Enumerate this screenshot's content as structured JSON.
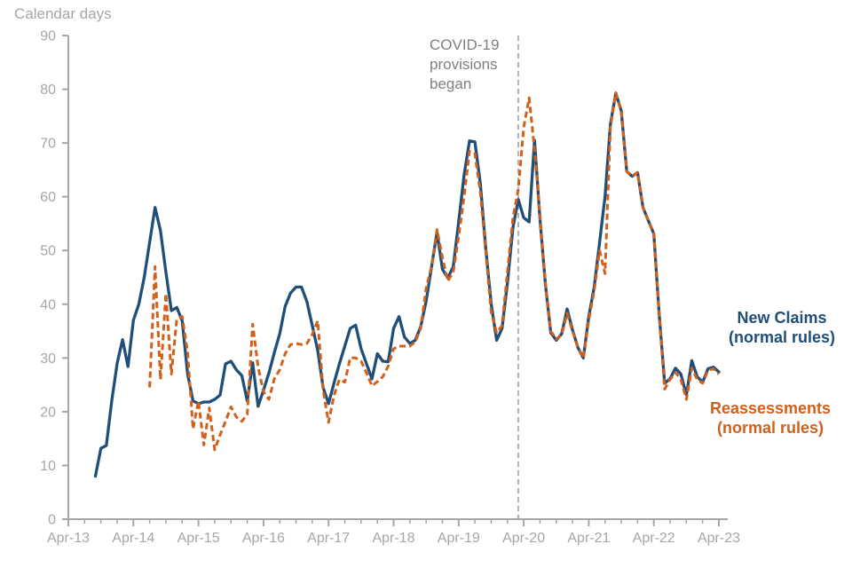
{
  "page": {
    "title": "Calendar days"
  },
  "annotation": {
    "text": "COVID-19\nprovisions\nbegan"
  },
  "legend": {
    "new_claims": {
      "line1": "New Claims",
      "line2": "(normal rules)"
    },
    "reassessments": {
      "line1": "Reassessments",
      "line2": "(normal rules)"
    }
  },
  "colors": {
    "new_claims": "#1f4e79",
    "reassessments": "#d2601a",
    "axis": "#a6a6a6",
    "annotation": "#7f7f7f",
    "covid_line": "#ababab"
  },
  "chart_data": {
    "type": "line",
    "title": "Calendar days",
    "ylabel": "Calendar days",
    "x_unit": "month",
    "x_start": "Apr-2013",
    "x_end": "Apr-2023",
    "months_total": 121,
    "x_tick_labels": [
      "Apr-13",
      "Apr-14",
      "Apr-15",
      "Apr-16",
      "Apr-17",
      "Apr-18",
      "Apr-19",
      "Apr-20",
      "Apr-21",
      "Apr-22",
      "Apr-23"
    ],
    "ylim": [
      0,
      90
    ],
    "y_tick_step": 10,
    "grid": false,
    "legend_position": "right",
    "covid_line": {
      "month_index": 83,
      "month": "Mar-2020",
      "label": "COVID-19 provisions began"
    },
    "series": [
      {
        "name": "New Claims (normal rules)",
        "color": "#1f4e79",
        "style": "solid",
        "values": [
          null,
          null,
          null,
          null,
          null,
          8,
          13.2,
          13.7,
          22,
          29,
          33.4,
          28.4,
          37,
          40,
          45,
          51.5,
          58,
          53.7,
          46,
          38.8,
          39.4,
          36.9,
          27,
          22,
          21.5,
          21.8,
          21.8,
          22.3,
          23.1,
          28.9,
          29.4,
          27.8,
          26.7,
          22,
          29.1,
          21,
          24,
          27.2,
          31,
          34.5,
          39.6,
          42.1,
          43.2,
          43.2,
          40.5,
          36,
          31.4,
          24.5,
          21.5,
          25.3,
          28.9,
          32.2,
          35.5,
          36.1,
          31.7,
          28.9,
          26.1,
          30.8,
          29.4,
          29.3,
          35.5,
          37.7,
          33.9,
          32.7,
          33.3,
          35.8,
          40.5,
          47,
          53.4,
          46.5,
          44.9,
          47,
          55.3,
          64,
          70.4,
          70.2,
          62.5,
          50.4,
          40,
          33.3,
          35.5,
          44,
          54.2,
          59.5,
          56.1,
          55.3,
          70.5,
          55.9,
          43.8,
          34.7,
          33.3,
          34.5,
          39.1,
          35.2,
          31.9,
          30,
          37.7,
          43.2,
          51.5,
          60,
          73.5,
          79.3,
          76,
          64.7,
          63.8,
          64.5,
          58,
          55.5,
          53.1,
          38,
          25.3,
          26.1,
          28.1,
          27,
          23.1,
          29.5,
          26.5,
          25.5,
          28,
          28.3,
          27.4
        ]
      },
      {
        "name": "Reassessments (normal rules)",
        "color": "#d2601a",
        "style": "dashed",
        "values": [
          null,
          null,
          null,
          null,
          null,
          null,
          null,
          null,
          null,
          null,
          null,
          null,
          null,
          null,
          null,
          24.5,
          47,
          26,
          42,
          27,
          37.2,
          37.7,
          31.1,
          16.8,
          22,
          13.8,
          20.7,
          12.9,
          15.7,
          18.2,
          20.9,
          19,
          18.2,
          19.5,
          36.3,
          28.3,
          23.7,
          22.3,
          26.1,
          27.8,
          30.8,
          32.5,
          32.7,
          32.5,
          32.7,
          34.4,
          36.9,
          24,
          18,
          23,
          26,
          25.5,
          30,
          30,
          29.4,
          27.2,
          24.8,
          25.6,
          26.5,
          28.5,
          31.7,
          32.2,
          32.2,
          32.2,
          33,
          35.5,
          42.9,
          47.1,
          53.9,
          48.7,
          44.3,
          46,
          52.6,
          60,
          68.5,
          68,
          60.8,
          49.8,
          38.5,
          34.7,
          36,
          46,
          56,
          61.4,
          72.9,
          78.4,
          68.8,
          56.5,
          44,
          35,
          33.5,
          34.3,
          38.3,
          35,
          31.9,
          30,
          37,
          42.5,
          50,
          45.7,
          73,
          79.3,
          76,
          64.7,
          63.8,
          64.5,
          58,
          55.5,
          53.1,
          38,
          24.2,
          26,
          27.3,
          26,
          22.3,
          28.1,
          26,
          25.3,
          27.7,
          28,
          27
        ]
      }
    ]
  }
}
